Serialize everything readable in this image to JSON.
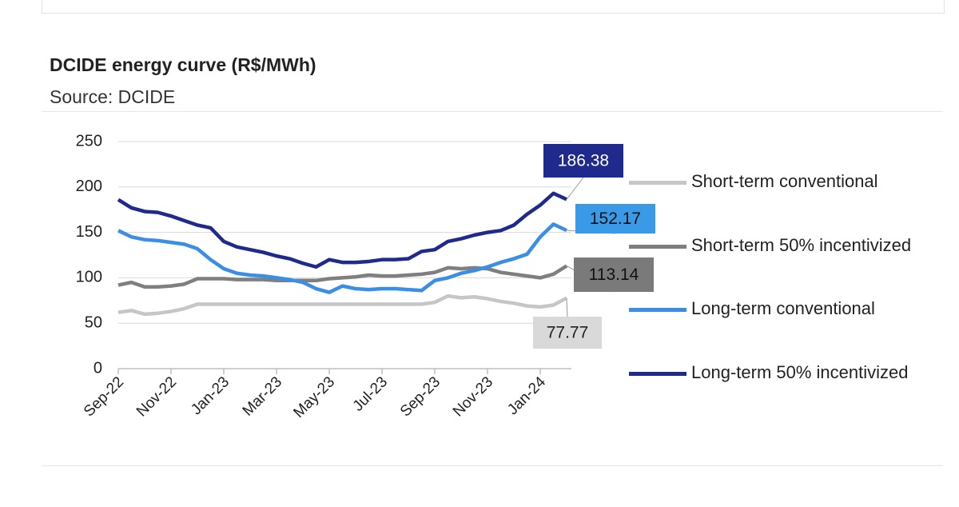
{
  "chart_data": {
    "type": "line",
    "title": "DCIDE energy curve (R$/MWh)",
    "subtitle": "Source: DCIDE",
    "categories": [
      "Sep-22",
      null,
      null,
      null,
      "Nov-22",
      null,
      null,
      null,
      "Jan-23",
      null,
      null,
      null,
      "Mar-23",
      null,
      null,
      null,
      "May-23",
      null,
      null,
      null,
      "Jul-23",
      null,
      null,
      null,
      "Sep-23",
      null,
      null,
      null,
      "Nov-23",
      null,
      null,
      null,
      "Jan-24",
      null,
      null
    ],
    "series": [
      {
        "name": "Short-term conventional",
        "color": "#c6c6c6",
        "values": [
          62,
          64,
          60,
          61,
          63,
          66,
          71,
          71,
          71,
          71,
          71,
          71,
          71,
          71,
          71,
          71,
          71,
          71,
          71,
          71,
          71,
          71,
          71,
          71,
          73,
          80,
          78,
          79,
          77,
          74,
          72,
          69,
          68,
          70,
          77.77
        ]
      },
      {
        "name": "Short-term 50% incentivized",
        "color": "#7f7f7f",
        "values": [
          92,
          95,
          90,
          90,
          91,
          93,
          99,
          99,
          99,
          98,
          98,
          98,
          97,
          97,
          97,
          97,
          99,
          100,
          101,
          103,
          102,
          102,
          103,
          104,
          106,
          111,
          110,
          111,
          110,
          106,
          104,
          102,
          100,
          104,
          113.14
        ]
      },
      {
        "name": "Long-term conventional",
        "color": "#3a8ee6",
        "values": [
          152,
          145,
          142,
          141,
          139,
          137,
          132,
          120,
          110,
          105,
          103,
          102,
          100,
          98,
          95,
          88,
          84,
          91,
          88,
          87,
          88,
          88,
          87,
          86,
          97,
          100,
          105,
          108,
          112,
          117,
          121,
          126,
          145,
          159,
          152.17
        ]
      },
      {
        "name": "Long-term 50% incentivized",
        "color": "#1f2a8c",
        "values": [
          186,
          177,
          173,
          172,
          168,
          163,
          158,
          155,
          140,
          134,
          131,
          128,
          124,
          121,
          116,
          112,
          120,
          117,
          117,
          118,
          120,
          120,
          121,
          129,
          131,
          140,
          143,
          147,
          150,
          152,
          158,
          170,
          180,
          193,
          186.38
        ]
      }
    ],
    "ylim": [
      0,
      250
    ],
    "yticks": [
      0,
      50,
      100,
      150,
      200,
      250
    ],
    "grid": true
  }
}
